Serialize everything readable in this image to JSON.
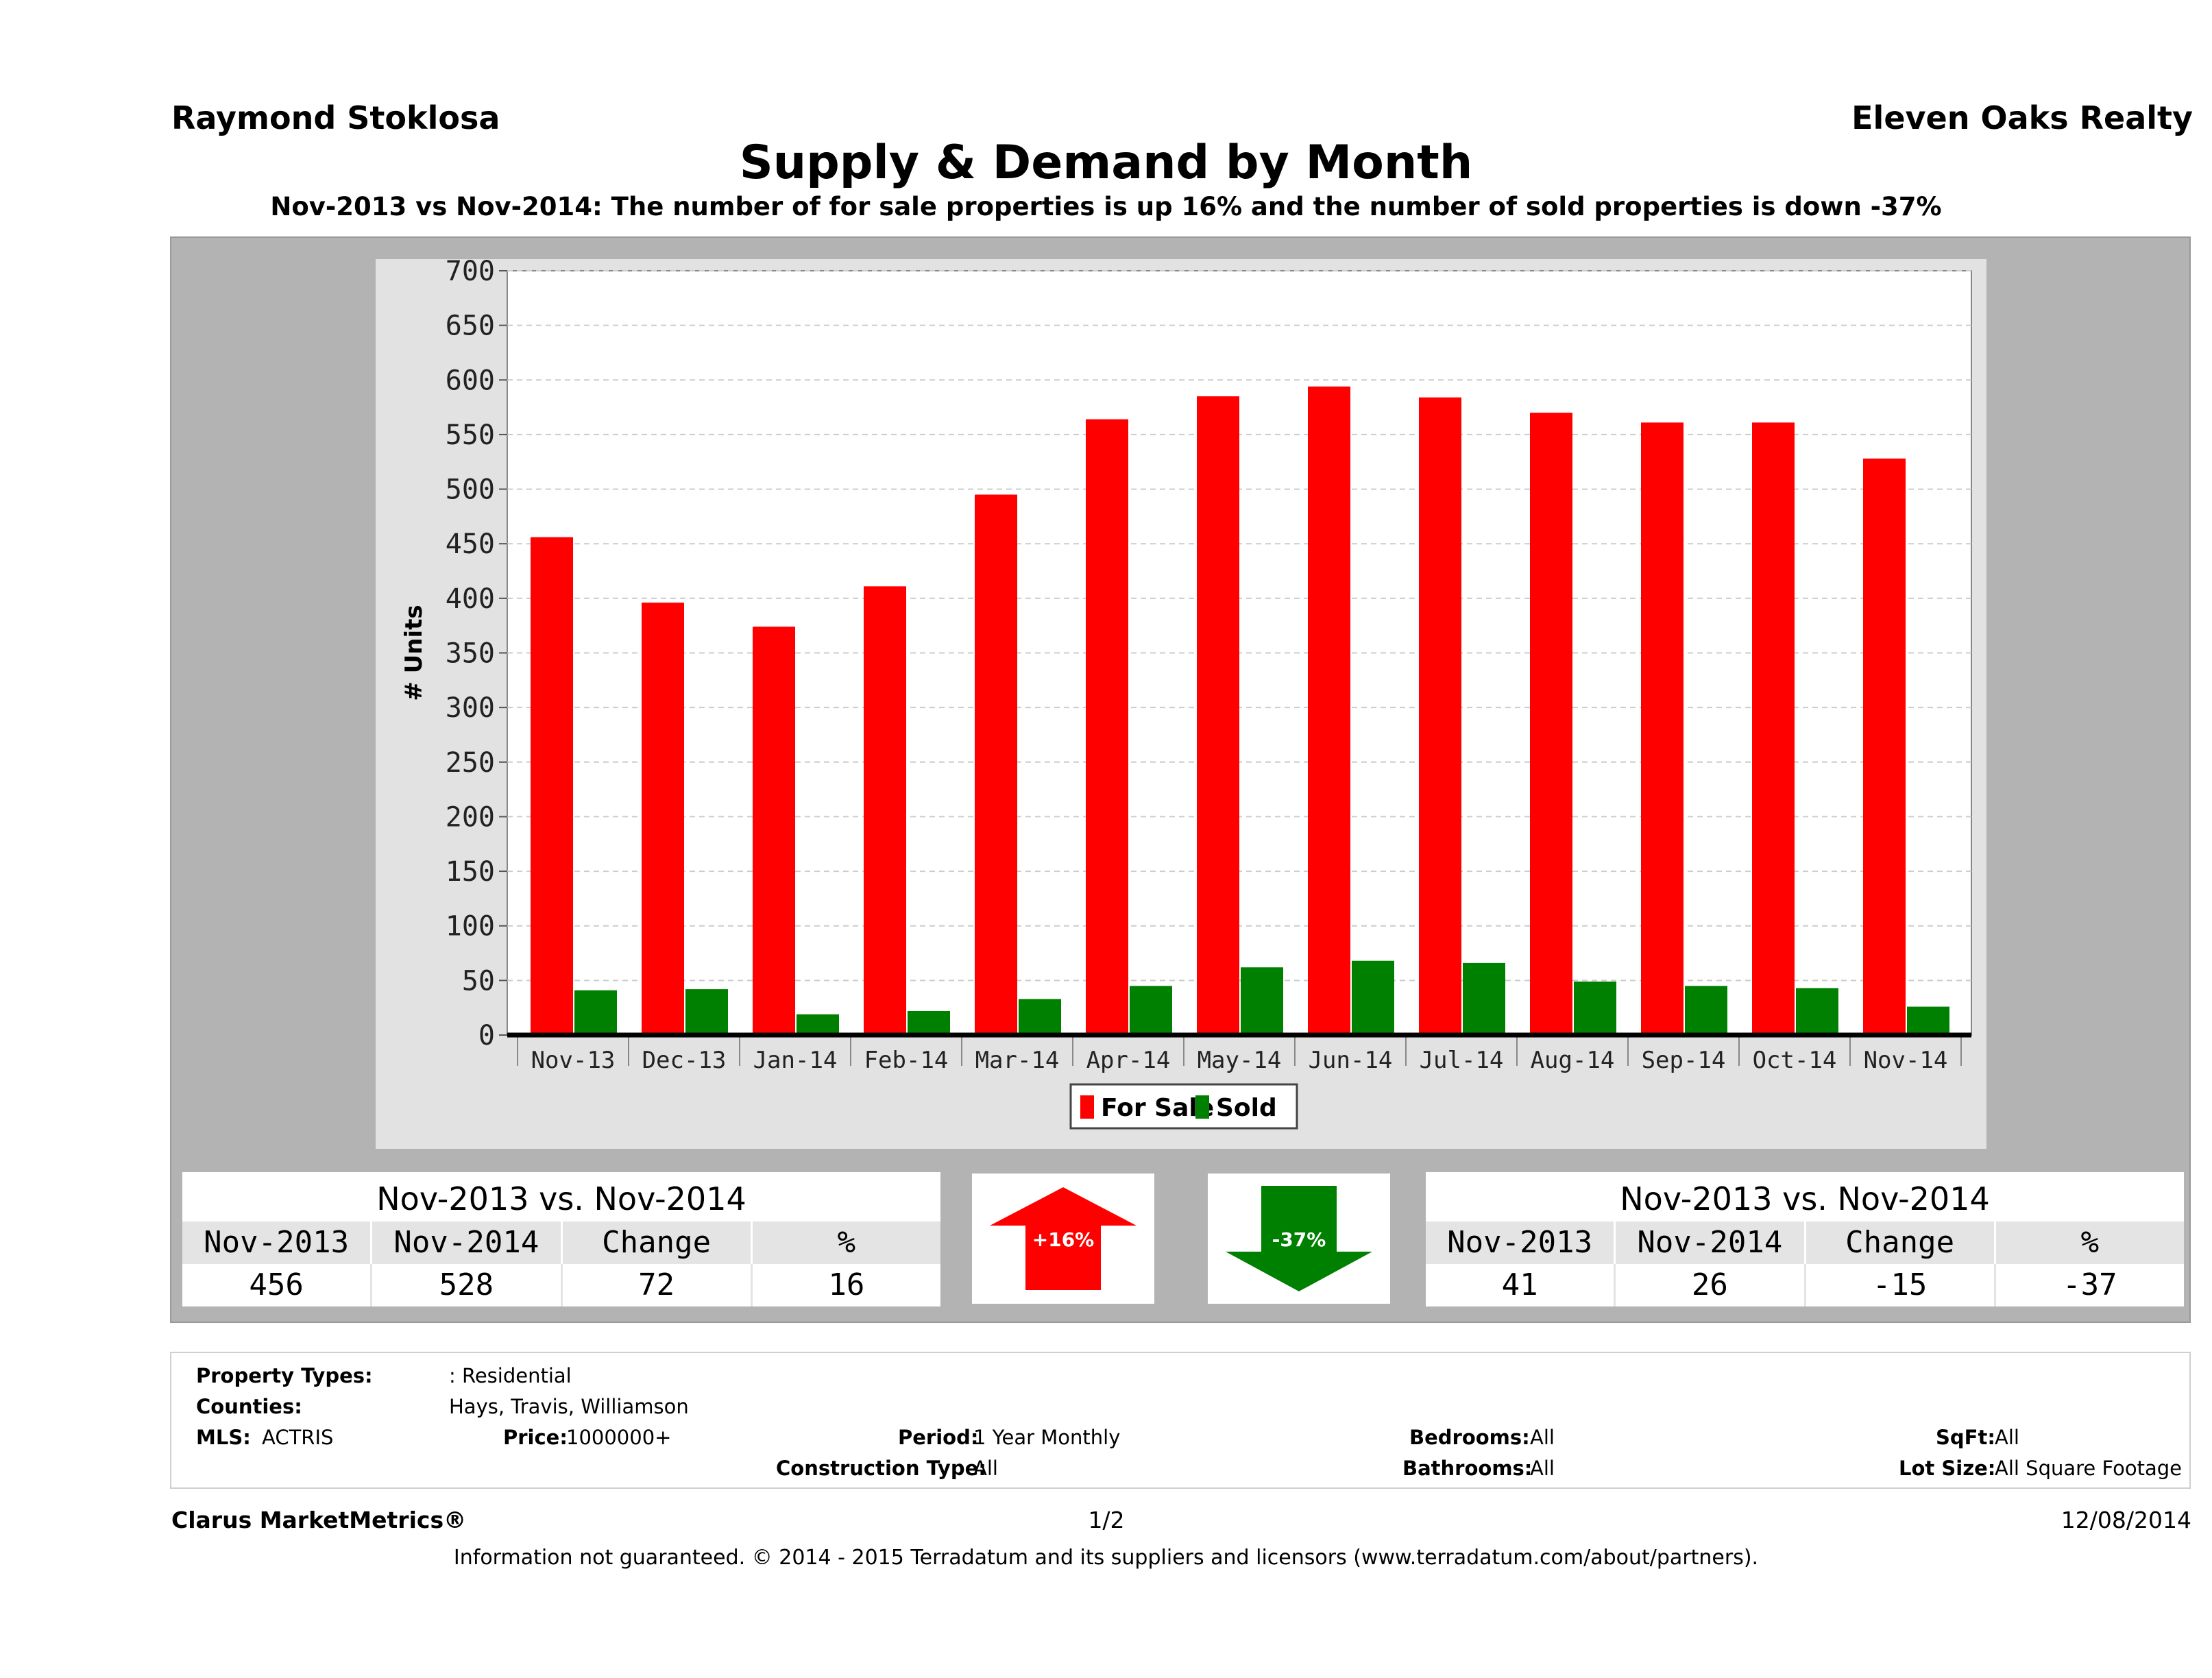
{
  "header": {
    "agent": "Raymond Stoklosa",
    "brokerage": "Eleven Oaks Realty",
    "title": "Supply & Demand by Month",
    "subtitle": "Nov-2013 vs Nov-2014: The number of for sale properties is up 16% and the number of sold properties is down -37%"
  },
  "chart_data": {
    "type": "bar",
    "ylabel": "# Units",
    "ylim": [
      0,
      700
    ],
    "yticks": [
      0,
      50,
      100,
      150,
      200,
      250,
      300,
      350,
      400,
      450,
      500,
      550,
      600,
      650,
      700
    ],
    "categories": [
      "Nov-13",
      "Dec-13",
      "Jan-14",
      "Feb-14",
      "Mar-14",
      "Apr-14",
      "May-14",
      "Jun-14",
      "Jul-14",
      "Aug-14",
      "Sep-14",
      "Oct-14",
      "Nov-14"
    ],
    "series": [
      {
        "name": "For Sale",
        "color": "#ff0000",
        "values": [
          456,
          396,
          374,
          411,
          495,
          564,
          585,
          594,
          584,
          570,
          561,
          561,
          528
        ]
      },
      {
        "name": "Sold",
        "color": "#008000",
        "values": [
          41,
          42,
          19,
          22,
          33,
          45,
          62,
          68,
          66,
          49,
          45,
          43,
          26
        ]
      }
    ],
    "grid": true,
    "legend": "bottom-center"
  },
  "for_sale_table": {
    "title": "Nov-2013 vs. Nov-2014",
    "headers": [
      "Nov-2013",
      "Nov-2014",
      "Change",
      "%"
    ],
    "values": [
      "456",
      "528",
      "72",
      "16"
    ]
  },
  "sold_table": {
    "title": "Nov-2013 vs. Nov-2014",
    "headers": [
      "Nov-2013",
      "Nov-2014",
      "Change",
      "%"
    ],
    "values": [
      "41",
      "26",
      "-15",
      "-37"
    ]
  },
  "indicators": {
    "up": {
      "label": "+16%",
      "color": "#ff0000"
    },
    "down": {
      "label": "-37%",
      "color": "#008000"
    }
  },
  "filters": {
    "property_types_label": "Property Types:",
    "property_types_value": ": Residential",
    "counties_label": "Counties:",
    "counties_value": "Hays, Travis, Williamson",
    "mls_label": "MLS:",
    "mls_value": "ACTRIS",
    "price_label": "Price:",
    "price_value": "1000000+",
    "period_label": "Period:",
    "period_value": "1 Year Monthly",
    "construction_label": "Construction Type:",
    "construction_value": "All",
    "bedrooms_label": "Bedrooms:",
    "bedrooms_value": "All",
    "bathrooms_label": "Bathrooms:",
    "bathrooms_value": "All",
    "sqft_label": "SqFt:",
    "sqft_value": "All",
    "lotsize_label": "Lot Size:",
    "lotsize_value": "All Square Footage"
  },
  "footer": {
    "brand": "Clarus MarketMetrics®",
    "page": "1/2",
    "date": "12/08/2014",
    "disclaimer": "Information not guaranteed. © 2014 - 2015 Terradatum and its suppliers and licensors (www.terradatum.com/about/partners)."
  }
}
